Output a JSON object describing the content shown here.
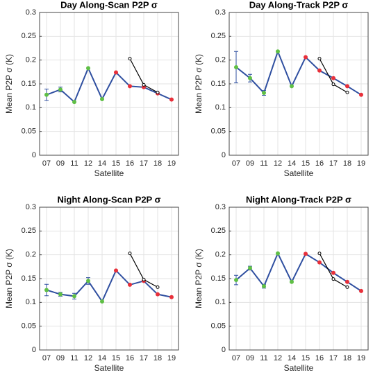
{
  "chart_data": [
    {
      "type": "line",
      "title": "Day Along-Scan P2P σ",
      "xlabel": "Satellite",
      "ylabel": "Mean P2P σ (K)",
      "categories": [
        "07",
        "09",
        "11",
        "12",
        "14",
        "15",
        "16",
        "17",
        "18",
        "19"
      ],
      "series": [
        {
          "color": "#2f4fa0",
          "marker_colors": [
            "#5fbf45",
            "#5fbf45",
            "#5fbf45",
            "#5fbf45",
            "#5fbf45",
            "#e8303a",
            "#e8303a",
            "#e8303a",
            "#e8303a",
            "#e8303a"
          ],
          "values": [
            0.127,
            0.138,
            0.112,
            0.183,
            0.118,
            0.174,
            0.145,
            0.143,
            0.13,
            0.117
          ],
          "errors": [
            0.012,
            0.005,
            null,
            null,
            null,
            null,
            null,
            null,
            null,
            null
          ]
        },
        {
          "color": "#000000",
          "values": [
            null,
            null,
            null,
            null,
            null,
            null,
            0.203,
            0.148,
            0.132,
            null
          ]
        }
      ],
      "ylim": [
        0,
        0.3
      ],
      "yticks": [
        0,
        0.05,
        0.1,
        0.15,
        0.2,
        0.25,
        0.3
      ],
      "grid": true
    },
    {
      "type": "line",
      "title": "Day Along-Track P2P σ",
      "xlabel": "Satellite",
      "ylabel": "Mean P2P σ (K)",
      "categories": [
        "07",
        "09",
        "11",
        "12",
        "14",
        "15",
        "16",
        "17",
        "18",
        "19"
      ],
      "series": [
        {
          "color": "#2f4fa0",
          "marker_colors": [
            "#5fbf45",
            "#5fbf45",
            "#5fbf45",
            "#5fbf45",
            "#5fbf45",
            "#e8303a",
            "#e8303a",
            "#e8303a",
            "#e8303a",
            "#e8303a"
          ],
          "values": [
            0.185,
            0.162,
            0.131,
            0.218,
            0.145,
            0.206,
            0.178,
            0.162,
            0.145,
            0.127
          ],
          "errors": [
            0.033,
            0.008,
            0.005,
            null,
            null,
            null,
            null,
            null,
            null,
            null
          ]
        },
        {
          "color": "#000000",
          "values": [
            null,
            null,
            null,
            null,
            null,
            null,
            0.203,
            0.149,
            0.132,
            null
          ]
        }
      ],
      "ylim": [
        0,
        0.3
      ],
      "yticks": [
        0,
        0.05,
        0.1,
        0.15,
        0.2,
        0.25,
        0.3
      ],
      "grid": true
    },
    {
      "type": "line",
      "title": "Night Along-Scan P2P σ",
      "xlabel": "Satellite",
      "ylabel": "Mean P2P σ (K)",
      "categories": [
        "07",
        "09",
        "11",
        "12",
        "14",
        "15",
        "16",
        "17",
        "18",
        "19"
      ],
      "series": [
        {
          "color": "#2f4fa0",
          "marker_colors": [
            "#5fbf45",
            "#5fbf45",
            "#5fbf45",
            "#5fbf45",
            "#5fbf45",
            "#e8303a",
            "#e8303a",
            "#e8303a",
            "#e8303a",
            "#e8303a"
          ],
          "values": [
            0.126,
            0.117,
            0.113,
            0.145,
            0.102,
            0.167,
            0.137,
            0.145,
            0.117,
            0.111
          ],
          "errors": [
            0.012,
            0.004,
            0.006,
            0.007,
            null,
            null,
            null,
            null,
            null,
            null
          ]
        },
        {
          "color": "#000000",
          "values": [
            null,
            null,
            null,
            null,
            null,
            null,
            0.203,
            0.148,
            0.132,
            null
          ]
        }
      ],
      "ylim": [
        0,
        0.3
      ],
      "yticks": [
        0,
        0.05,
        0.1,
        0.15,
        0.2,
        0.25,
        0.3
      ],
      "grid": true
    },
    {
      "type": "line",
      "title": "Night Along-Track P2P σ",
      "xlabel": "Satellite",
      "ylabel": "Mean P2P σ (K)",
      "categories": [
        "07",
        "09",
        "11",
        "12",
        "14",
        "15",
        "16",
        "17",
        "18",
        "19"
      ],
      "series": [
        {
          "color": "#2f4fa0",
          "marker_colors": [
            "#5fbf45",
            "#5fbf45",
            "#5fbf45",
            "#5fbf45",
            "#5fbf45",
            "#e8303a",
            "#e8303a",
            "#e8303a",
            "#e8303a",
            "#e8303a"
          ],
          "values": [
            0.147,
            0.172,
            0.134,
            0.203,
            0.143,
            0.202,
            0.184,
            0.162,
            0.143,
            0.124
          ],
          "errors": [
            0.01,
            0.004,
            0.004,
            null,
            null,
            null,
            null,
            null,
            null,
            null
          ]
        },
        {
          "color": "#000000",
          "values": [
            null,
            null,
            null,
            null,
            null,
            null,
            0.203,
            0.149,
            0.132,
            null
          ]
        }
      ],
      "ylim": [
        0,
        0.3
      ],
      "yticks": [
        0,
        0.05,
        0.1,
        0.15,
        0.2,
        0.25,
        0.3
      ],
      "grid": true
    }
  ]
}
